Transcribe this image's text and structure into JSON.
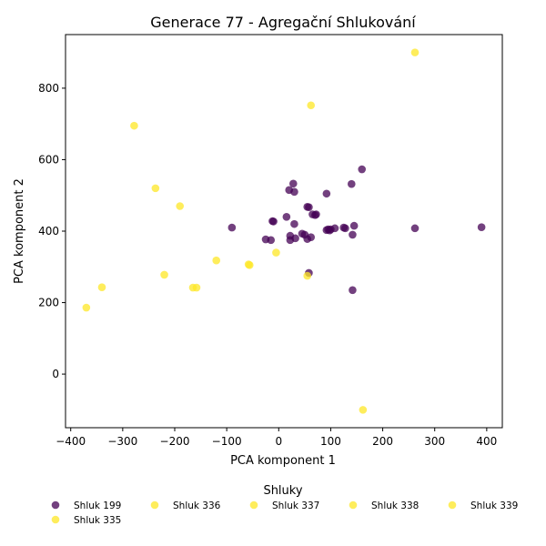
{
  "chart_data": {
    "type": "scatter",
    "title": "Generace 77 - Agregační Shlukování",
    "xlabel": "PCA komponent 1",
    "ylabel": "PCA komponent 2",
    "xlim": [
      -410,
      430
    ],
    "ylim": [
      -150,
      950
    ],
    "xticks": [
      -400,
      -300,
      -200,
      -100,
      0,
      100,
      200,
      300,
      400
    ],
    "yticks": [
      0,
      200,
      400,
      600,
      800
    ],
    "grid": false,
    "legend": {
      "title": "Shluky",
      "placement": "bottom-center"
    },
    "colors": {
      "purple": "#440154",
      "yellow": "#fde725"
    },
    "series": [
      {
        "name": "Shluk 199",
        "color": "#440154",
        "points": [
          [
            -90,
            410
          ],
          [
            -12,
            428
          ],
          [
            -10,
            427
          ],
          [
            -25,
            377
          ],
          [
            -15,
            375
          ],
          [
            15,
            440
          ],
          [
            20,
            515
          ],
          [
            28,
            533
          ],
          [
            30,
            510
          ],
          [
            30,
            420
          ],
          [
            22,
            375
          ],
          [
            22,
            387
          ],
          [
            32,
            380
          ],
          [
            45,
            393
          ],
          [
            50,
            390
          ],
          [
            55,
            378
          ],
          [
            62,
            383
          ],
          [
            55,
            468
          ],
          [
            58,
            467
          ],
          [
            65,
            447
          ],
          [
            70,
            445
          ],
          [
            72,
            447
          ],
          [
            92,
            505
          ],
          [
            92,
            403
          ],
          [
            95,
            405
          ],
          [
            98,
            402
          ],
          [
            100,
            405
          ],
          [
            108,
            408
          ],
          [
            125,
            410
          ],
          [
            128,
            408
          ],
          [
            140,
            532
          ],
          [
            142,
            390
          ],
          [
            145,
            415
          ],
          [
            160,
            573
          ],
          [
            142,
            235
          ],
          [
            58,
            283
          ],
          [
            262,
            408
          ],
          [
            390,
            411
          ]
        ]
      },
      {
        "name": "Shluk 336",
        "color": "#fde725",
        "points": []
      },
      {
        "name": "Shluk 337",
        "color": "#fde725",
        "points": []
      },
      {
        "name": "Shluk 338",
        "color": "#fde725",
        "points": []
      },
      {
        "name": "Shluk 339",
        "color": "#fde725",
        "points": []
      },
      {
        "name": "Shluk 335",
        "color": "#fde725",
        "points": [
          [
            262,
            900
          ],
          [
            62,
            752
          ],
          [
            -278,
            695
          ],
          [
            -237,
            520
          ],
          [
            -190,
            470
          ],
          [
            -120,
            318
          ],
          [
            -220,
            278
          ],
          [
            -58,
            307
          ],
          [
            -56,
            305
          ],
          [
            -5,
            340
          ],
          [
            -340,
            243
          ],
          [
            -165,
            242
          ],
          [
            -158,
            242
          ],
          [
            -370,
            186
          ],
          [
            55,
            275
          ],
          [
            162,
            -100
          ]
        ]
      }
    ]
  }
}
